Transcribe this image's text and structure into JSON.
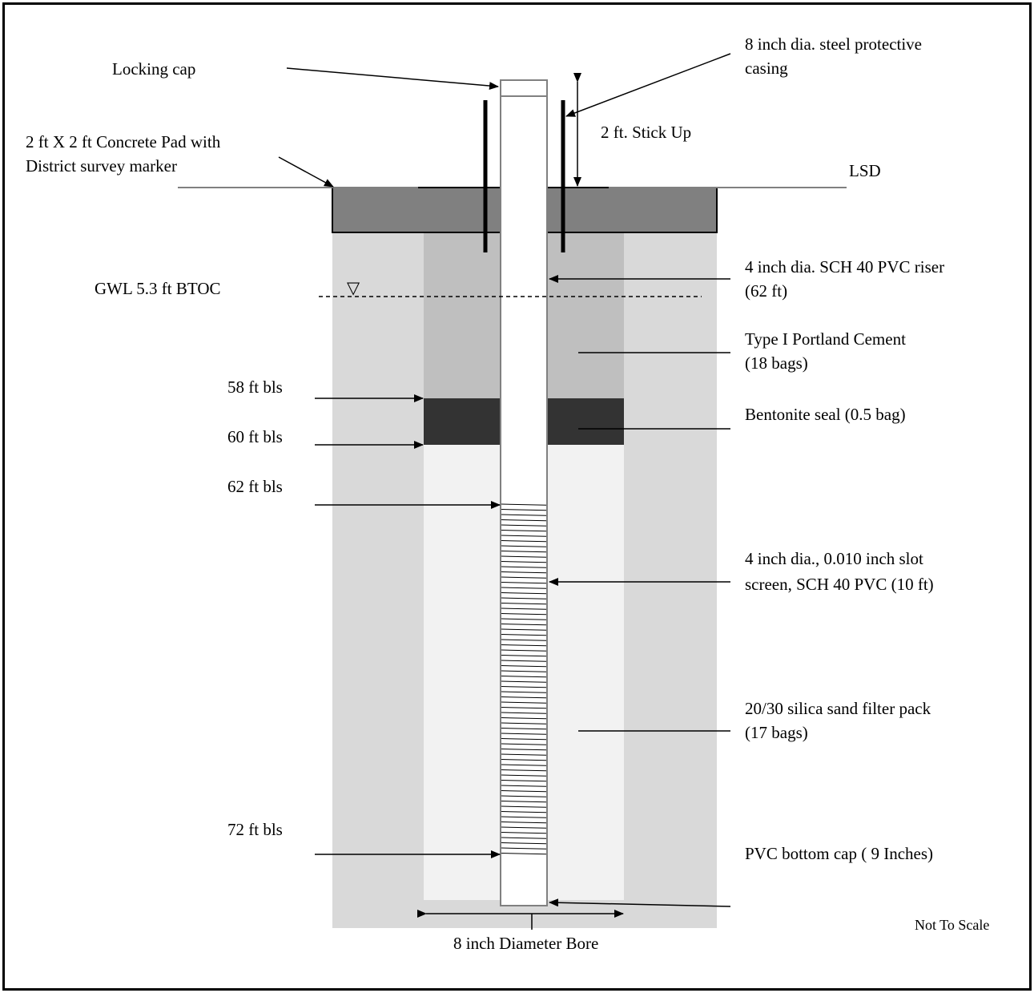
{
  "labels": {
    "locking_cap": "Locking cap",
    "casing_line1": "8 inch dia. steel protective",
    "casing_line2": "casing",
    "stick_up": "2 ft. Stick Up",
    "pad_line1": "2 ft X 2 ft Concrete Pad with",
    "pad_line2": "District survey marker",
    "lsd": "LSD",
    "riser_line1": "4 inch dia. SCH 40  PVC riser",
    "riser_line2": "(62 ft)",
    "gwl": "GWL  5.3 ft BTOC",
    "cement_line1": "Type I Portland Cement",
    "cement_line2": "(18 bags)",
    "depth_58": "58 ft bls",
    "bentonite": "Bentonite seal (0.5 bag)",
    "depth_60": "60 ft bls",
    "depth_62": "62 ft bls",
    "screen_line1": "4  inch dia., 0.010 inch slot",
    "screen_line2": "screen, SCH 40 PVC (10 ft)",
    "sand_line1": "20/30 silica sand filter pack",
    "sand_line2": "(17 bags)",
    "depth_72": "72 ft bls",
    "bottom_cap": "PVC bottom cap ( 9 Inches)",
    "not_to_scale": "Not To Scale",
    "bore": "8 inch Diameter Bore"
  },
  "symbols": {
    "water_table": "▽"
  },
  "colors": {
    "formation": "#d9d9d9",
    "cement": "#bfbfbf",
    "pad": "#808080",
    "bentonite": "#333333",
    "sand": "#f2f2f2"
  }
}
